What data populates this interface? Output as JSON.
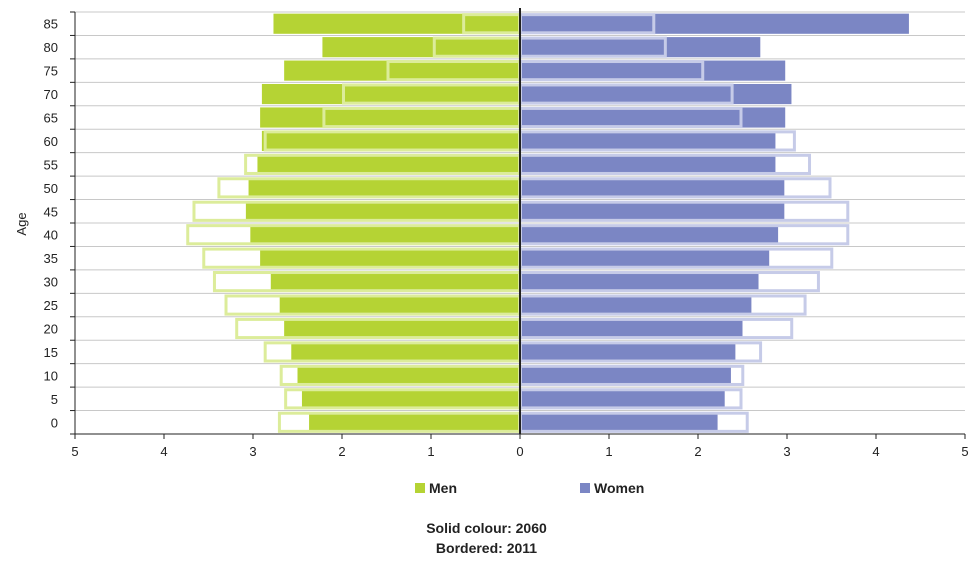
{
  "chart_data": {
    "type": "bar",
    "orientation": "horizontal-population-pyramid",
    "ylabel": "Age",
    "age_groups": [
      "0",
      "5",
      "10",
      "15",
      "20",
      "25",
      "30",
      "35",
      "40",
      "45",
      "50",
      "55",
      "60",
      "65",
      "70",
      "75",
      "80",
      "85"
    ],
    "x_ticks": [
      "5",
      "4",
      "3",
      "2",
      "1",
      "0",
      "1",
      "2",
      "3",
      "4",
      "5"
    ],
    "xlim": [
      -5,
      5
    ],
    "colors": {
      "men": "#b5d334",
      "women": "#7b86c4",
      "men_border": "#dcec9a",
      "women_border": "#c6cbe8"
    },
    "series": [
      {
        "name": "Men",
        "group": "Solid colour: 2060",
        "values": [
          2.37,
          2.45,
          2.5,
          2.57,
          2.65,
          2.7,
          2.8,
          2.92,
          3.03,
          3.08,
          3.05,
          2.95,
          2.9,
          2.92,
          2.9,
          2.65,
          2.22,
          2.77
        ]
      },
      {
        "name": "Women",
        "group": "Solid colour: 2060",
        "values": [
          2.22,
          2.3,
          2.37,
          2.42,
          2.5,
          2.6,
          2.68,
          2.8,
          2.9,
          2.97,
          2.97,
          2.87,
          2.87,
          2.98,
          3.05,
          2.98,
          2.7,
          4.37
        ]
      },
      {
        "name": "Men",
        "group": "Bordered: 2011",
        "values": [
          2.72,
          2.65,
          2.7,
          2.88,
          3.2,
          3.32,
          3.45,
          3.57,
          3.75,
          3.68,
          3.4,
          3.1,
          2.88,
          2.22,
          2.0,
          1.5,
          0.98,
          0.65
        ]
      },
      {
        "name": "Women",
        "group": "Bordered: 2011",
        "values": [
          2.57,
          2.5,
          2.52,
          2.72,
          3.07,
          3.22,
          3.37,
          3.52,
          3.7,
          3.7,
          3.5,
          3.27,
          3.1,
          2.5,
          2.4,
          2.07,
          1.65,
          1.52
        ]
      }
    ]
  },
  "legend": {
    "men_label": "Men",
    "women_label": "Women"
  },
  "notes": {
    "line1": "Solid colour: 2060",
    "line2": "Bordered: 2011"
  }
}
